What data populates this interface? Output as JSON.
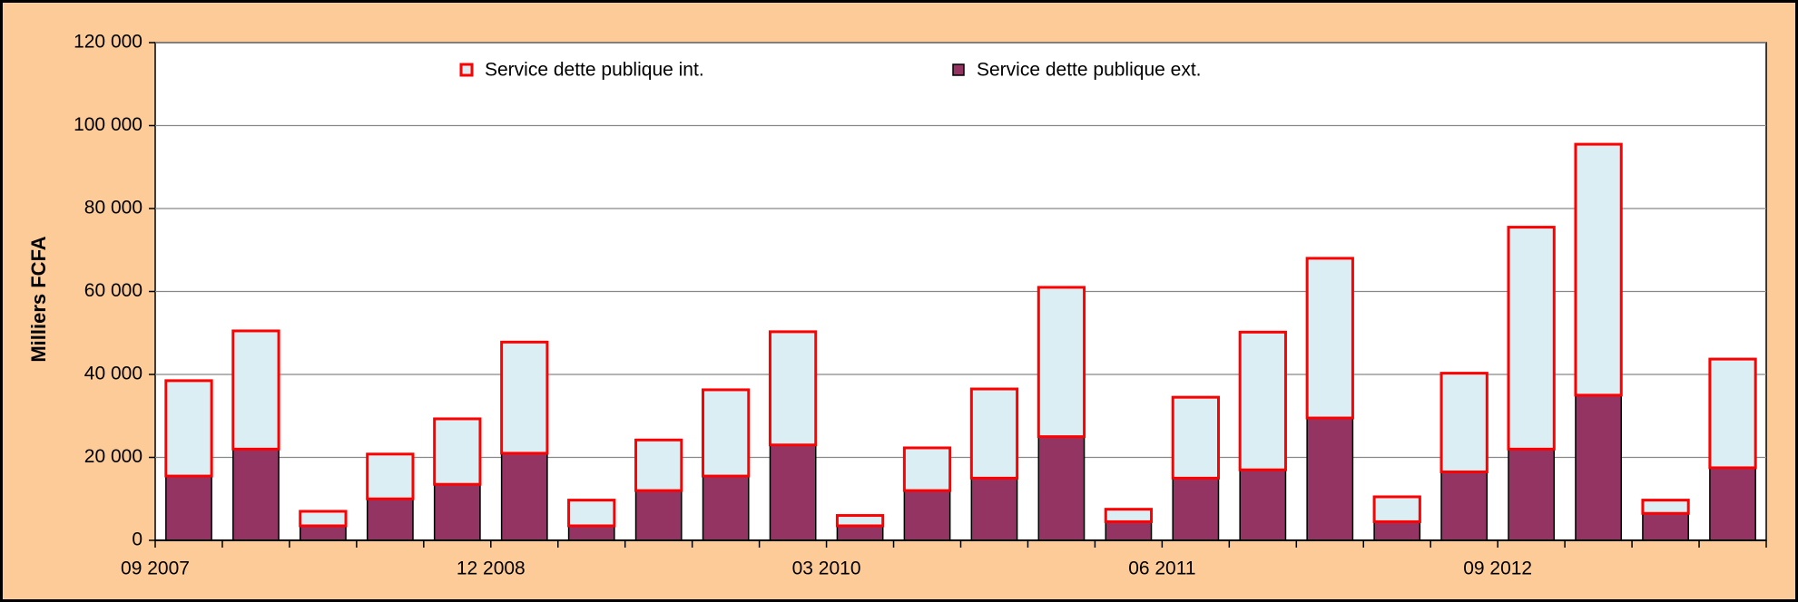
{
  "chart_data": {
    "type": "stacked_bar",
    "y_label": "Milliers FCFA",
    "categories": [
      "09 2007",
      null,
      null,
      null,
      null,
      "12 2008",
      null,
      null,
      null,
      null,
      "03 2010",
      null,
      null,
      null,
      null,
      "06 2011",
      null,
      null,
      null,
      null,
      "09 2012",
      null,
      null,
      null
    ],
    "series": [
      {
        "name": "Service dette publique ext.",
        "color": "#943462",
        "stroke": "#000000",
        "values": [
          15500,
          22000,
          3500,
          10000,
          13500,
          21000,
          3500,
          12000,
          15500,
          23000,
          3500,
          12000,
          15000,
          25000,
          4500,
          15000,
          17000,
          29500,
          4500,
          16500,
          22000,
          35000,
          6500,
          17500
        ]
      },
      {
        "name": "Service dette publique int.",
        "color": "#dbeef3",
        "stroke": "#ff0000",
        "values": [
          23000,
          28500,
          3500,
          10800,
          15800,
          26800,
          6200,
          12200,
          20800,
          27300,
          2500,
          10300,
          21500,
          36000,
          3000,
          19500,
          33200,
          38500,
          6000,
          23800,
          53500,
          60500,
          3200,
          26200
        ]
      }
    ],
    "ylim": [
      0,
      120000
    ],
    "yticks": [
      0,
      {
        "value": 20000,
        "label": "20 000"
      },
      {
        "value": 40000,
        "label": "40 000"
      },
      {
        "value": 60000,
        "label": "60 000"
      },
      {
        "value": 80000,
        "label": "80 000"
      },
      {
        "value": 100000,
        "label": "100 000"
      },
      {
        "value": 120000,
        "label": "120 000"
      }
    ],
    "grid": true
  }
}
